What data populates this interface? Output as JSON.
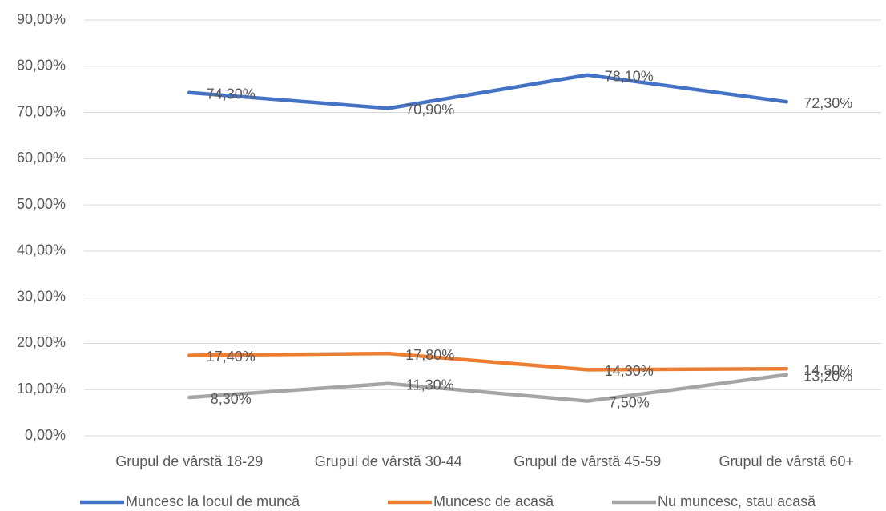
{
  "chart_data": {
    "type": "line",
    "categories": [
      "Grupul de vârstă 18-29",
      "Grupul de vârstă 30-44",
      "Grupul de vârstă 45-59",
      "Grupul de vârstă 60+"
    ],
    "series": [
      {
        "name": "Muncesc la locul de muncă",
        "color": "#4472c4",
        "values": [
          74.3,
          70.9,
          78.1,
          72.3
        ],
        "value_labels": [
          "74,30%",
          "70,90%",
          "78,10%",
          "72,30%"
        ]
      },
      {
        "name": "Muncesc de acasă",
        "color": "#ed7d31",
        "values": [
          17.4,
          17.8,
          14.3,
          14.5
        ],
        "value_labels": [
          "17,40%",
          "17,80%",
          "14,30%",
          "14,50%"
        ]
      },
      {
        "name": "Nu muncesc, stau acasă",
        "color": "#a5a5a5",
        "values": [
          8.3,
          11.3,
          7.5,
          13.2
        ],
        "value_labels": [
          "8,30%",
          "11,30%",
          "7,50%",
          "13,20%"
        ]
      }
    ],
    "ylim": [
      0,
      90
    ],
    "yticks": [
      {
        "value": 0,
        "label": "0,00%"
      },
      {
        "value": 10,
        "label": "10,00%"
      },
      {
        "value": 20,
        "label": "20,00%"
      },
      {
        "value": 30,
        "label": "30,00%"
      },
      {
        "value": 40,
        "label": "40,00%"
      },
      {
        "value": 50,
        "label": "50,00%"
      },
      {
        "value": 60,
        "label": "60,00%"
      },
      {
        "value": 70,
        "label": "70,00%"
      },
      {
        "value": 80,
        "label": "80,00%"
      },
      {
        "value": 90,
        "label": "90,00%"
      }
    ],
    "grid": true,
    "legend": "bottom"
  }
}
